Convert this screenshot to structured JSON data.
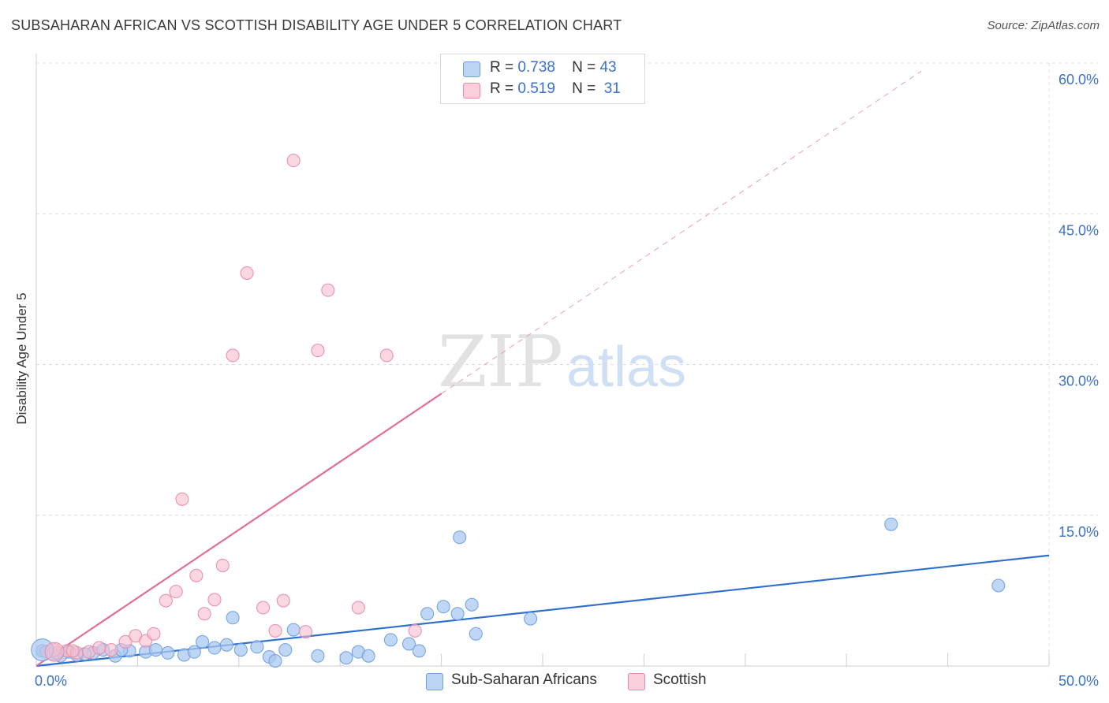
{
  "header": {
    "title": "SUBSAHARAN AFRICAN VS SCOTTISH DISABILITY AGE UNDER 5 CORRELATION CHART",
    "source": "Source: ZipAtlas.com"
  },
  "legend": {
    "rows": [
      {
        "r_label": "R =",
        "r_value": "0.738",
        "n_label": "N =",
        "n_value": "43"
      },
      {
        "r_label": "R =",
        "r_value": "0.519",
        "n_label": "N =",
        "n_value": "31"
      }
    ]
  },
  "colors": {
    "blue_fill": "#a9c8f0",
    "blue_stroke": "#6f9fdf",
    "blue_line": "#2f6fd0",
    "pink_fill": "#f6bccd",
    "pink_stroke": "#e88aa6",
    "pink_line": "#e06e98",
    "axis_label": "#3a72c8",
    "grid": "#dddddd"
  },
  "watermark": {
    "zip": "ZIP",
    "atlas": "atlas"
  },
  "chart_data": {
    "type": "scatter",
    "title": "SUBSAHARAN AFRICAN VS SCOTTISH DISABILITY AGE UNDER 5 CORRELATION CHART",
    "xlabel": "",
    "ylabel": "Disability Age Under 5",
    "xlim": [
      0,
      50
    ],
    "ylim": [
      0,
      60
    ],
    "x_tick_labels": [
      "0.0%",
      "50.0%"
    ],
    "y_ticks": [
      15,
      30,
      45,
      60
    ],
    "y_tick_labels": [
      "15.0%",
      "30.0%",
      "45.0%",
      "60.0%"
    ],
    "grid": true,
    "legend_position": "top-center",
    "series": [
      {
        "name": "Sub-Saharan Africans",
        "color": "#a9c8f0",
        "points": [
          [
            0.3,
            1.5
          ],
          [
            0.8,
            1.2
          ],
          [
            1.2,
            1.0
          ],
          [
            1.6,
            1.4
          ],
          [
            2.0,
            1.1
          ],
          [
            2.8,
            1.3
          ],
          [
            3.3,
            1.6
          ],
          [
            3.9,
            1.0
          ],
          [
            4.6,
            1.5
          ],
          [
            5.4,
            1.4
          ],
          [
            5.9,
            1.6
          ],
          [
            6.5,
            1.3
          ],
          [
            7.3,
            1.1
          ],
          [
            7.8,
            1.4
          ],
          [
            8.2,
            2.4
          ],
          [
            8.8,
            1.8
          ],
          [
            9.4,
            2.1
          ],
          [
            9.7,
            4.8
          ],
          [
            10.1,
            1.6
          ],
          [
            10.9,
            1.9
          ],
          [
            11.5,
            0.9
          ],
          [
            11.8,
            0.5
          ],
          [
            12.3,
            1.6
          ],
          [
            12.7,
            3.6
          ],
          [
            13.9,
            1.0
          ],
          [
            15.3,
            0.8
          ],
          [
            15.9,
            1.4
          ],
          [
            16.4,
            1.0
          ],
          [
            17.5,
            2.6
          ],
          [
            18.4,
            2.2
          ],
          [
            18.9,
            1.5
          ],
          [
            19.3,
            5.2
          ],
          [
            20.1,
            5.9
          ],
          [
            20.9,
            12.8
          ],
          [
            20.8,
            5.2
          ],
          [
            21.5,
            6.1
          ],
          [
            21.7,
            3.2
          ],
          [
            24.4,
            4.7
          ],
          [
            42.2,
            14.1
          ],
          [
            47.5,
            8.0
          ],
          [
            1.0,
            1.3
          ],
          [
            2.4,
            1.2
          ],
          [
            4.2,
            1.6
          ]
        ],
        "trend": [
          [
            0,
            0
          ],
          [
            50,
            11.0
          ]
        ]
      },
      {
        "name": "Scottish",
        "color": "#f6bccd",
        "points": [
          [
            0.5,
            1.4
          ],
          [
            0.9,
            1.6
          ],
          [
            1.5,
            1.5
          ],
          [
            2.0,
            1.3
          ],
          [
            2.6,
            1.4
          ],
          [
            3.1,
            1.8
          ],
          [
            3.7,
            1.6
          ],
          [
            4.4,
            2.4
          ],
          [
            4.9,
            3.0
          ],
          [
            5.4,
            2.5
          ],
          [
            5.8,
            3.2
          ],
          [
            6.4,
            6.5
          ],
          [
            6.9,
            7.4
          ],
          [
            7.2,
            16.6
          ],
          [
            7.9,
            9.0
          ],
          [
            8.3,
            5.2
          ],
          [
            8.8,
            6.6
          ],
          [
            9.2,
            10.0
          ],
          [
            9.7,
            30.9
          ],
          [
            10.4,
            39.1
          ],
          [
            11.2,
            5.8
          ],
          [
            11.8,
            3.5
          ],
          [
            12.2,
            6.5
          ],
          [
            12.7,
            50.3
          ],
          [
            13.3,
            3.4
          ],
          [
            13.9,
            31.4
          ],
          [
            14.4,
            37.4
          ],
          [
            15.9,
            5.8
          ],
          [
            17.3,
            30.9
          ],
          [
            18.7,
            3.5
          ],
          [
            1.8,
            1.5
          ]
        ],
        "trend": [
          [
            0,
            0
          ],
          [
            20,
            27.1
          ]
        ],
        "trend_extension": [
          [
            20,
            27.1
          ],
          [
            43.7,
            59.2
          ]
        ]
      }
    ]
  },
  "bottom_legend": {
    "items": [
      {
        "label": "Sub-Saharan Africans"
      },
      {
        "label": "Scottish"
      }
    ]
  }
}
